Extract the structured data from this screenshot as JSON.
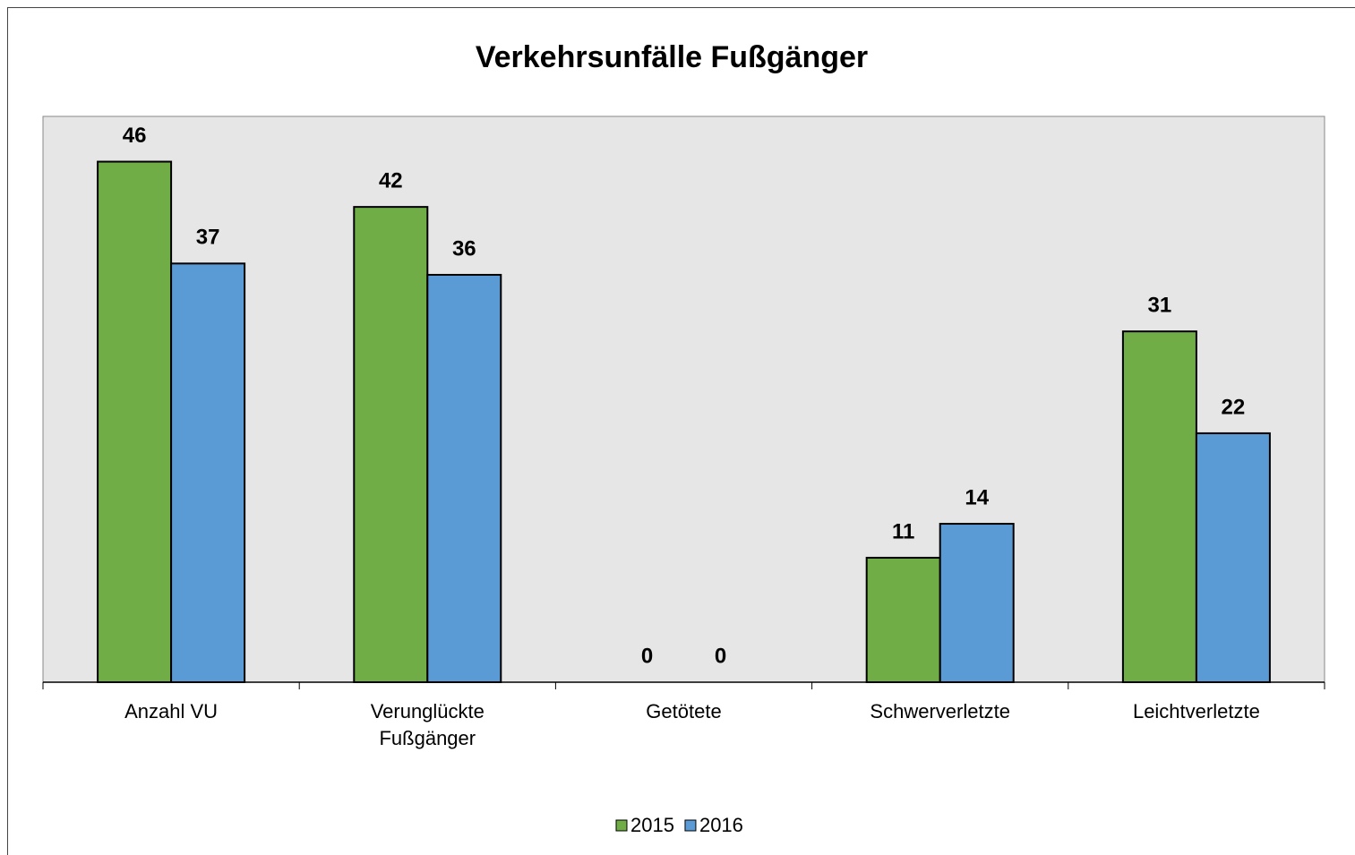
{
  "chart_data": {
    "type": "bar",
    "title": "Verkehrsunfälle Fußgänger",
    "categories": [
      "Anzahl VU",
      "Verunglückte Fußgänger",
      "Getötete",
      "Schwerverletzte",
      "Leichtverletzte"
    ],
    "series": [
      {
        "name": "2015",
        "color": "#70ad47",
        "values": [
          46,
          42,
          0,
          11,
          31
        ]
      },
      {
        "name": "2016",
        "color": "#5b9bd5",
        "values": [
          37,
          36,
          0,
          14,
          22
        ]
      }
    ],
    "ylim": [
      0,
      50
    ],
    "legend": "bottom"
  }
}
